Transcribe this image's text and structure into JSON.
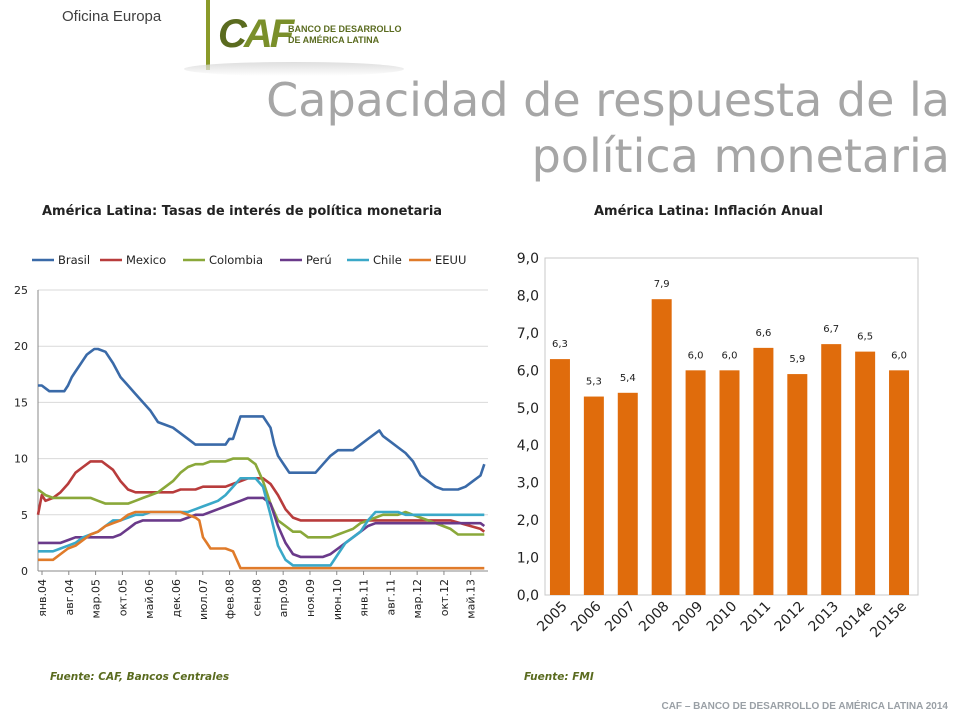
{
  "header": {
    "office": "Oficina Europa",
    "logo_mark": "CAF",
    "logo_line1": "BANCO DE DESARROLLO",
    "logo_line2": "DE AMÉRICA LATINA",
    "title_line1": "Capacidad de respuesta de la",
    "title_line2": "política monetaria"
  },
  "left": {
    "title": "América Latina: Tasas de interés de política monetaria",
    "source": "Fuente: CAF, Bancos Centrales"
  },
  "right": {
    "title": "América Latina: Inflación Anual",
    "source": "Fuente: FMI"
  },
  "footer": "CAF – BANCO DE DESARROLLO DE AMÉRICA LATINA 2014",
  "chart_data": [
    {
      "type": "line",
      "title": "América Latina: Tasas de interés de política monetaria",
      "x_ticks": [
        "янв.04",
        "авг.04",
        "мар.05",
        "окт.05",
        "май.06",
        "дек.06",
        "июл.07",
        "фев.08",
        "сен.08",
        "апр.09",
        "ноя.09",
        "июн.10",
        "янв.11",
        "авг.11",
        "мар.12",
        "окт.12",
        "май.13"
      ],
      "x_range": [
        0,
        120
      ],
      "ylim": [
        0,
        25
      ],
      "y_ticks": [
        0,
        5,
        10,
        15,
        20,
        25
      ],
      "grid": true,
      "legend_position": "top",
      "series": [
        {
          "name": "Brasil",
          "color": "#3a6aa8",
          "x": [
            0,
            1,
            2,
            3,
            4,
            5,
            6,
            7,
            8,
            9,
            10,
            11,
            12,
            13,
            14,
            15,
            16,
            18,
            20,
            22,
            24,
            26,
            28,
            30,
            32,
            34,
            36,
            38,
            40,
            42,
            44,
            46,
            48,
            50,
            51,
            52,
            54,
            56,
            57,
            58,
            60,
            62,
            63,
            64,
            66,
            67,
            68,
            70,
            72,
            74,
            76,
            78,
            80,
            82,
            84,
            86,
            88,
            90,
            91,
            92,
            94,
            96,
            98,
            100,
            102,
            104,
            106,
            108,
            110,
            112,
            114,
            116,
            118,
            119
          ],
          "y": [
            16.5,
            16.5,
            16.25,
            16,
            16,
            16,
            16,
            16,
            16.5,
            17.25,
            17.75,
            18.25,
            18.75,
            19.25,
            19.5,
            19.75,
            19.75,
            19.5,
            18.5,
            17.25,
            16.5,
            15.75,
            15,
            14.25,
            13.25,
            13,
            12.75,
            12.25,
            11.75,
            11.25,
            11.25,
            11.25,
            11.25,
            11.25,
            11.75,
            11.75,
            13.75,
            13.75,
            13.75,
            13.75,
            13.75,
            12.75,
            11.25,
            10.25,
            9.25,
            8.75,
            8.75,
            8.75,
            8.75,
            8.75,
            9.5,
            10.25,
            10.75,
            10.75,
            10.75,
            11.25,
            11.75,
            12.25,
            12.5,
            12,
            11.5,
            11,
            10.5,
            9.75,
            8.5,
            8,
            7.5,
            7.25,
            7.25,
            7.25,
            7.5,
            8,
            8.5,
            9.5
          ]
        },
        {
          "name": "Mexico",
          "color": "#b83c3c",
          "x": [
            0,
            1,
            2,
            4,
            6,
            8,
            10,
            12,
            14,
            16,
            17,
            18,
            20,
            22,
            24,
            26,
            28,
            30,
            32,
            34,
            36,
            38,
            40,
            42,
            44,
            46,
            48,
            50,
            52,
            54,
            56,
            58,
            60,
            62,
            64,
            66,
            68,
            70,
            80,
            90,
            100,
            110,
            118,
            119
          ],
          "y": [
            5.0,
            6.75,
            6.25,
            6.5,
            7,
            7.75,
            8.75,
            9.25,
            9.75,
            9.75,
            9.75,
            9.5,
            9,
            8,
            7.25,
            7,
            7,
            7,
            7,
            7,
            7,
            7.25,
            7.25,
            7.25,
            7.5,
            7.5,
            7.5,
            7.5,
            7.75,
            8,
            8.25,
            8.25,
            8.25,
            7.75,
            6.75,
            5.5,
            4.75,
            4.5,
            4.5,
            4.5,
            4.5,
            4.5,
            3.75,
            3.5
          ]
        },
        {
          "name": "Colombia",
          "color": "#8aa83a",
          "x": [
            0,
            2,
            4,
            6,
            8,
            10,
            12,
            14,
            16,
            18,
            20,
            22,
            24,
            26,
            28,
            30,
            32,
            34,
            36,
            38,
            40,
            42,
            44,
            46,
            48,
            50,
            52,
            54,
            56,
            58,
            60,
            62,
            64,
            66,
            68,
            70,
            72,
            74,
            76,
            78,
            80,
            82,
            84,
            86,
            88,
            90,
            92,
            94,
            96,
            98,
            100,
            102,
            104,
            106,
            108,
            110,
            112,
            114,
            116,
            118,
            119
          ],
          "y": [
            7.25,
            6.75,
            6.5,
            6.5,
            6.5,
            6.5,
            6.5,
            6.5,
            6.25,
            6,
            6,
            6,
            6,
            6.25,
            6.5,
            6.75,
            7,
            7.5,
            8,
            8.75,
            9.25,
            9.5,
            9.5,
            9.75,
            9.75,
            9.75,
            10,
            10,
            10,
            9.5,
            8,
            6,
            4.5,
            4,
            3.5,
            3.5,
            3,
            3,
            3,
            3,
            3.25,
            3.5,
            3.75,
            4.25,
            4.5,
            4.75,
            5,
            5,
            5,
            5.25,
            5,
            4.75,
            4.5,
            4.25,
            4,
            3.75,
            3.25,
            3.25,
            3.25,
            3.25,
            3.25
          ]
        },
        {
          "name": "Perú",
          "color": "#6a3a8a",
          "x": [
            0,
            2,
            4,
            6,
            8,
            10,
            12,
            14,
            16,
            18,
            20,
            22,
            24,
            26,
            28,
            30,
            32,
            34,
            36,
            38,
            40,
            42,
            44,
            46,
            48,
            50,
            52,
            54,
            56,
            58,
            60,
            62,
            64,
            66,
            68,
            70,
            72,
            74,
            76,
            78,
            80,
            82,
            84,
            86,
            88,
            90,
            92,
            94,
            96,
            98,
            100,
            102,
            104,
            106,
            108,
            110,
            112,
            114,
            116,
            118,
            119
          ],
          "y": [
            2.5,
            2.5,
            2.5,
            2.5,
            2.75,
            3,
            3,
            3,
            3,
            3,
            3,
            3.25,
            3.75,
            4.25,
            4.5,
            4.5,
            4.5,
            4.5,
            4.5,
            4.5,
            4.75,
            5,
            5,
            5.25,
            5.5,
            5.75,
            6,
            6.25,
            6.5,
            6.5,
            6.5,
            6,
            4,
            2.5,
            1.5,
            1.25,
            1.25,
            1.25,
            1.25,
            1.5,
            2,
            2.5,
            3,
            3.5,
            4,
            4.25,
            4.25,
            4.25,
            4.25,
            4.25,
            4.25,
            4.25,
            4.25,
            4.25,
            4.25,
            4.25,
            4.25,
            4.25,
            4.25,
            4.25,
            4
          ]
        },
        {
          "name": "Chile",
          "color": "#3aa8c8",
          "x": [
            0,
            2,
            4,
            6,
            8,
            10,
            12,
            14,
            16,
            18,
            20,
            22,
            24,
            26,
            28,
            30,
            32,
            34,
            36,
            38,
            40,
            42,
            44,
            46,
            48,
            50,
            52,
            54,
            55,
            56,
            58,
            60,
            62,
            64,
            66,
            68,
            70,
            72,
            74,
            76,
            78,
            80,
            82,
            84,
            86,
            88,
            90,
            92,
            94,
            96,
            98,
            100,
            102,
            104,
            106,
            108,
            110,
            112,
            114,
            116,
            118,
            119
          ],
          "y": [
            1.75,
            1.75,
            1.75,
            2,
            2.25,
            2.5,
            3,
            3.25,
            3.5,
            4,
            4.5,
            4.5,
            4.75,
            5,
            5,
            5.25,
            5.25,
            5.25,
            5.25,
            5.25,
            5.25,
            5.5,
            5.75,
            6,
            6.25,
            6.75,
            7.5,
            8.25,
            8.25,
            8.25,
            8.25,
            7.5,
            5,
            2.25,
            1,
            0.5,
            0.5,
            0.5,
            0.5,
            0.5,
            0.5,
            1.5,
            2.5,
            3,
            3.5,
            4.5,
            5.25,
            5.25,
            5.25,
            5.25,
            5,
            5,
            5,
            5,
            5,
            5,
            5,
            5,
            5,
            5,
            5,
            5
          ]
        },
        {
          "name": "EEUU",
          "color": "#e07b2a",
          "x": [
            0,
            2,
            4,
            6,
            8,
            10,
            12,
            14,
            16,
            18,
            20,
            22,
            24,
            26,
            28,
            30,
            32,
            34,
            36,
            38,
            40,
            42,
            43,
            44,
            45,
            46,
            48,
            50,
            52,
            53,
            54,
            60,
            70,
            80,
            90,
            100,
            110,
            119
          ],
          "y": [
            1,
            1,
            1,
            1.5,
            2,
            2.25,
            2.75,
            3.25,
            3.5,
            4,
            4.25,
            4.5,
            5,
            5.25,
            5.25,
            5.25,
            5.25,
            5.25,
            5.25,
            5.25,
            5,
            4.75,
            4.5,
            3,
            2.5,
            2,
            2,
            2,
            1.75,
            1,
            0.25,
            0.25,
            0.25,
            0.25,
            0.25,
            0.25,
            0.25,
            0.25
          ]
        }
      ]
    },
    {
      "type": "bar",
      "title": "América Latina: Inflación Anual",
      "categories": [
        "2005",
        "2006",
        "2007",
        "2008",
        "2009",
        "2010",
        "2011",
        "2012",
        "2013",
        "2014e",
        "2015e"
      ],
      "values": [
        6.3,
        5.3,
        5.4,
        7.9,
        6.0,
        6.0,
        6.6,
        5.9,
        6.7,
        6.5,
        6.0
      ],
      "labels": [
        "6,3",
        "5,3",
        "5,4",
        "7,9",
        "6,0",
        "6,0",
        "6,6",
        "5,9",
        "6,7",
        "6,5",
        "6,0"
      ],
      "ylim": [
        0,
        9
      ],
      "y_ticks": [
        "0,0",
        "1,0",
        "2,0",
        "3,0",
        "4,0",
        "5,0",
        "6,0",
        "7,0",
        "8,0",
        "9,0"
      ],
      "color": "#e06c0c",
      "grid": false
    }
  ]
}
